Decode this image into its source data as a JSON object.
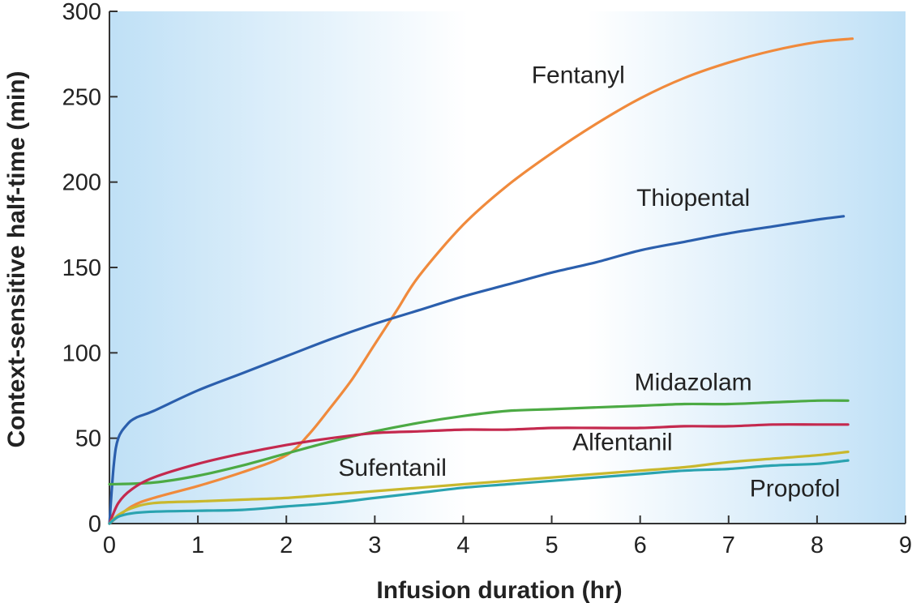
{
  "chart_data": {
    "type": "line",
    "title": "",
    "xlabel": "Infusion duration (hr)",
    "ylabel": "Context-sensitive half-time (min)",
    "xlim": [
      0,
      9
    ],
    "ylim": [
      0,
      300
    ],
    "xticks": [
      "0",
      "1",
      "2",
      "3",
      "4",
      "5",
      "6",
      "7",
      "8",
      "9"
    ],
    "yticks": [
      "0",
      "50",
      "100",
      "150",
      "200",
      "250",
      "300"
    ],
    "grid": false,
    "background": {
      "edge": "#bfe0f6",
      "center": "#ffffff"
    },
    "series": [
      {
        "name": "Fentanyl",
        "color": "#f08a3c",
        "x": [
          0,
          0.25,
          0.5,
          1,
          1.5,
          2,
          2.25,
          2.5,
          2.75,
          3,
          3.25,
          3.5,
          4,
          4.5,
          5,
          5.5,
          6,
          6.5,
          7,
          7.5,
          8,
          8.4
        ],
        "y": [
          0,
          10,
          15,
          22,
          30,
          40,
          52,
          68,
          85,
          105,
          125,
          145,
          175,
          198,
          217,
          234,
          249,
          261,
          270,
          277,
          282,
          284
        ]
      },
      {
        "name": "Thiopental",
        "color": "#2b5fad",
        "x": [
          0,
          0.05,
          0.1,
          0.2,
          0.3,
          0.5,
          1,
          1.5,
          2,
          2.5,
          3,
          3.5,
          4,
          4.5,
          5,
          5.5,
          6,
          6.5,
          7,
          7.5,
          8,
          8.3
        ],
        "y": [
          0,
          35,
          50,
          58,
          62,
          66,
          78,
          88,
          98,
          108,
          117,
          125,
          133,
          140,
          147,
          153,
          160,
          165,
          170,
          174,
          178,
          180
        ]
      },
      {
        "name": "Midazolam",
        "color": "#4caa44",
        "x": [
          0,
          0.5,
          1,
          1.5,
          2,
          2.5,
          3,
          3.5,
          4,
          4.5,
          5,
          5.5,
          6,
          6.5,
          7,
          7.5,
          8,
          8.35
        ],
        "y": [
          23,
          24,
          28,
          34,
          41,
          48,
          54,
          59,
          63,
          66,
          67,
          68,
          69,
          70,
          70,
          71,
          72,
          72
        ]
      },
      {
        "name": "Alfentanil",
        "color": "#c4294e",
        "x": [
          0,
          0.1,
          0.25,
          0.5,
          1,
          1.5,
          2,
          2.5,
          3,
          3.5,
          4,
          4.5,
          5,
          5.5,
          6,
          6.5,
          7,
          7.5,
          8,
          8.35
        ],
        "y": [
          0,
          12,
          20,
          27,
          35,
          41,
          46,
          50,
          53,
          54,
          55,
          55,
          56,
          56,
          56,
          57,
          57,
          58,
          58,
          58
        ]
      },
      {
        "name": "Sufentanil",
        "color": "#c9b82d",
        "x": [
          0,
          0.1,
          0.25,
          0.5,
          1,
          1.5,
          2,
          2.5,
          3,
          3.5,
          4,
          4.5,
          5,
          5.5,
          6,
          6.5,
          7,
          7.5,
          8,
          8.35
        ],
        "y": [
          0,
          5,
          9,
          12,
          13,
          14,
          15,
          17,
          19,
          21,
          23,
          25,
          27,
          29,
          31,
          33,
          36,
          38,
          40,
          42
        ]
      },
      {
        "name": "Propofol",
        "color": "#2aa3b0",
        "x": [
          0,
          0.1,
          0.25,
          0.5,
          1,
          1.5,
          2,
          2.5,
          3,
          3.5,
          4,
          4.5,
          5,
          5.5,
          6,
          6.5,
          7,
          7.5,
          8,
          8.35
        ],
        "y": [
          0,
          4,
          6,
          7,
          7.5,
          8,
          10,
          12,
          15,
          18,
          21,
          23,
          25,
          27,
          29,
          31,
          32,
          34,
          35,
          37
        ]
      }
    ]
  }
}
